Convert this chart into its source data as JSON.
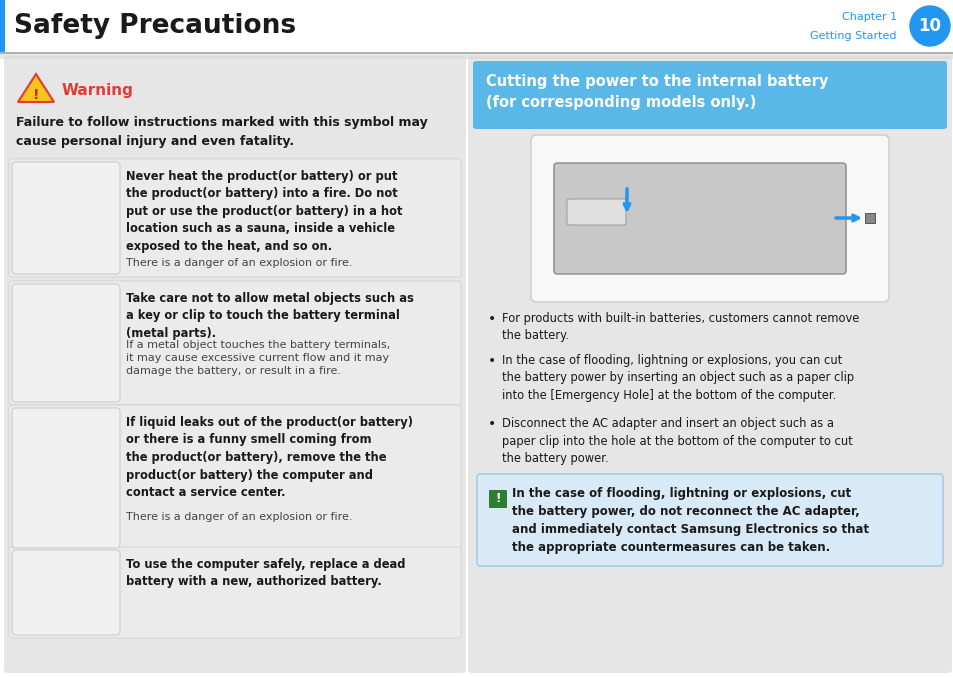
{
  "page_bg": "#ffffff",
  "header_title": "Safety Precautions",
  "header_title_color": "#1a1a1a",
  "header_chapter": "Chapter 1",
  "header_subtitle": "Getting Started",
  "header_chapter_color": "#2196F3",
  "header_page_num": "10",
  "header_circle_color": "#2196F3",
  "left_bar_color": "#2196F3",
  "left_panel_bg": "#e6e6e6",
  "right_panel_bg": "#e6e6e6",
  "warning_color": "#e53935",
  "warning_text": "Warning",
  "warning_desc_bold": "Failure to follow instructions marked with this symbol may\ncause personal injury and even fatality.",
  "blue_box_bg_top": "#7dd3f0",
  "blue_box_bg_bot": "#4db8e8",
  "blue_box_title": "Cutting the power to the internal battery\n(for corresponding models only.)",
  "blue_box_title_color": "#ffffff",
  "item1_bold": "Never heat the product(or battery) or put\nthe product(or battery) into a fire. Do not\nput or use the product(or battery) in a hot\nlocation such as a sauna, inside a vehicle\nexposed to the heat, and so on.",
  "item1_normal": "There is a danger of an explosion or fire.",
  "item2_bold": "Take care not to allow metal objects such as\na key or clip to touch the battery terminal\n(metal parts).",
  "item2_normal": "If a metal object touches the battery terminals,\nit may cause excessive current flow and it may\ndamage the battery, or result in a fire.",
  "item3_bold": "If liquid leaks out of the product(or battery)\nor there is a funny smell coming from\nthe product(or battery), remove the the\nproduct(or battery) the computer and\ncontact a service center.",
  "item3_normal": "There is a danger of an explosion or fire.",
  "item4_bold": "To use the computer safely, replace a dead\nbattery with a new, authorized battery.",
  "bullet1": "For products with built-in batteries, customers cannot remove\nthe battery.",
  "bullet2": "In the case of flooding, lightning or explosions, you can cut\nthe battery power by inserting an object such as a paper clip\ninto the [Emergency Hole] at the bottom of the computer.",
  "bullet3": "Disconnect the AC adapter and insert an object such as a\npaper clip into the hole at the bottom of the computer to cut\nthe battery power.",
  "note_bg": "#d8eaf7",
  "note_border": "#aaaaaa",
  "note_icon_color": "#2e7d32",
  "note_text": "In the case of flooding, lightning or explosions, cut\nthe battery power, do not reconnect the AC adapter,\nand immediately contact Samsung Electronics so that\nthe appropriate countermeasures can be taken.",
  "text_dark": "#1a1a1a",
  "text_light": "#444444",
  "icon_bg": "#f0f0f0",
  "icon_border": "#cccccc",
  "item_bg": "#e0e0e0",
  "item_border": "#cccccc"
}
